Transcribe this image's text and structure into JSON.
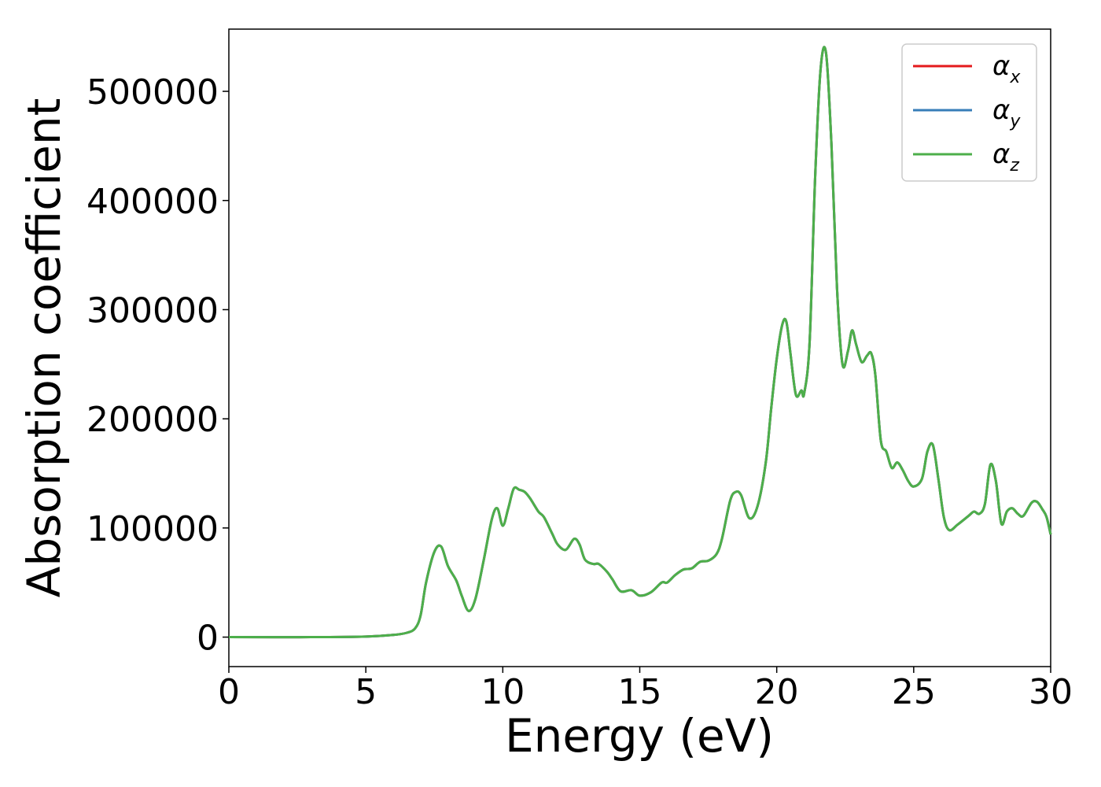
{
  "chart_data": {
    "type": "line",
    "title": "",
    "xlabel": "Energy (eV)",
    "ylabel": "Absorption coefficient",
    "xlim": [
      0,
      30
    ],
    "ylim": [
      -27000,
      557000
    ],
    "xticks": [
      0,
      5,
      10,
      15,
      20,
      25,
      30
    ],
    "xtick_labels": [
      "0",
      "5",
      "10",
      "15",
      "20",
      "25",
      "30"
    ],
    "yticks": [
      0,
      100000,
      200000,
      300000,
      400000,
      500000
    ],
    "ytick_labels": [
      "0",
      "100000",
      "200000",
      "300000",
      "400000",
      "500000"
    ],
    "grid": false,
    "legend_position": "top-right",
    "x": [
      0,
      3,
      5,
      6,
      6.5,
      6.8,
      7.0,
      7.2,
      7.5,
      7.75,
      8.0,
      8.3,
      8.5,
      8.75,
      9.0,
      9.3,
      9.6,
      9.8,
      10.0,
      10.2,
      10.4,
      10.6,
      10.8,
      11.0,
      11.3,
      11.5,
      11.8,
      12.0,
      12.3,
      12.6,
      12.8,
      13.0,
      13.3,
      13.5,
      13.8,
      14.0,
      14.3,
      14.7,
      15.0,
      15.4,
      15.8,
      16.0,
      16.3,
      16.6,
      16.9,
      17.2,
      17.5,
      17.8,
      18.0,
      18.3,
      18.5,
      18.7,
      19.0,
      19.3,
      19.6,
      19.8,
      20.0,
      20.2,
      20.35,
      20.5,
      20.7,
      20.9,
      21.0,
      21.2,
      21.4,
      21.6,
      21.8,
      22.0,
      22.2,
      22.4,
      22.6,
      22.75,
      22.9,
      23.1,
      23.3,
      23.45,
      23.6,
      23.8,
      24.0,
      24.2,
      24.4,
      24.6,
      24.8,
      25.0,
      25.3,
      25.5,
      25.7,
      25.9,
      26.1,
      26.3,
      26.6,
      27.0,
      27.2,
      27.4,
      27.6,
      27.8,
      28.0,
      28.2,
      28.4,
      28.6,
      28.8,
      29.0,
      29.3,
      29.5,
      29.7,
      29.85,
      30.0
    ],
    "series": [
      {
        "name": "αx",
        "color": "#e41a1c",
        "values": [
          0,
          0,
          500,
          2000,
          4000,
          8000,
          20000,
          50000,
          78000,
          83000,
          65000,
          52000,
          38000,
          24000,
          35000,
          70000,
          108000,
          118000,
          102000,
          118000,
          136000,
          135000,
          133000,
          127000,
          115000,
          110000,
          95000,
          85000,
          80000,
          90000,
          85000,
          71000,
          67000,
          67000,
          60000,
          53000,
          42000,
          43000,
          38000,
          41000,
          50000,
          50000,
          57000,
          62000,
          63000,
          69000,
          70000,
          76000,
          90000,
          125000,
          133000,
          130000,
          109000,
          120000,
          160000,
          210000,
          255000,
          286000,
          289000,
          260000,
          222000,
          226000,
          223000,
          270000,
          420000,
          520000,
          535000,
          450000,
          320000,
          250000,
          262000,
          281000,
          268000,
          252000,
          258000,
          260000,
          240000,
          180000,
          170000,
          155000,
          160000,
          153000,
          143000,
          138000,
          145000,
          170000,
          176000,
          145000,
          110000,
          98000,
          103000,
          111000,
          115000,
          113000,
          122000,
          158000,
          143000,
          104000,
          115000,
          118000,
          113000,
          111000,
          123000,
          124000,
          117000,
          110000,
          94000
        ]
      },
      {
        "name": "αy",
        "color": "#377eb8",
        "values": [
          0,
          0,
          500,
          2000,
          4000,
          8000,
          20000,
          50000,
          78000,
          83000,
          65000,
          52000,
          38000,
          24000,
          35000,
          70000,
          108000,
          118000,
          102000,
          118000,
          136000,
          135000,
          133000,
          127000,
          115000,
          110000,
          95000,
          85000,
          80000,
          90000,
          85000,
          71000,
          67000,
          67000,
          60000,
          53000,
          42000,
          43000,
          38000,
          41000,
          50000,
          50000,
          57000,
          62000,
          63000,
          69000,
          70000,
          76000,
          90000,
          125000,
          133000,
          130000,
          109000,
          120000,
          160000,
          210000,
          255000,
          286000,
          289000,
          260000,
          222000,
          226000,
          223000,
          270000,
          420000,
          520000,
          535000,
          450000,
          320000,
          250000,
          262000,
          281000,
          268000,
          252000,
          258000,
          260000,
          240000,
          180000,
          170000,
          155000,
          160000,
          153000,
          143000,
          138000,
          145000,
          170000,
          176000,
          145000,
          110000,
          98000,
          103000,
          111000,
          115000,
          113000,
          122000,
          158000,
          143000,
          104000,
          115000,
          118000,
          113000,
          111000,
          123000,
          124000,
          117000,
          110000,
          94000
        ]
      },
      {
        "name": "αz",
        "color": "#4daf4a",
        "values": [
          0,
          0,
          500,
          2000,
          4000,
          8000,
          20000,
          50000,
          78000,
          83000,
          65000,
          52000,
          38000,
          24000,
          35000,
          70000,
          108000,
          118000,
          102000,
          118000,
          136000,
          135000,
          133000,
          127000,
          115000,
          110000,
          95000,
          85000,
          80000,
          90000,
          85000,
          71000,
          67000,
          67000,
          60000,
          53000,
          42000,
          43000,
          38000,
          41000,
          50000,
          50000,
          57000,
          62000,
          63000,
          69000,
          70000,
          76000,
          90000,
          125000,
          133000,
          130000,
          109000,
          120000,
          160000,
          210000,
          255000,
          286000,
          289000,
          260000,
          222000,
          226000,
          223000,
          270000,
          420000,
          520000,
          535000,
          450000,
          320000,
          250000,
          262000,
          281000,
          268000,
          252000,
          258000,
          260000,
          240000,
          180000,
          170000,
          155000,
          160000,
          153000,
          143000,
          138000,
          145000,
          170000,
          176000,
          145000,
          110000,
          98000,
          103000,
          111000,
          115000,
          113000,
          122000,
          158000,
          143000,
          104000,
          115000,
          118000,
          113000,
          111000,
          123000,
          124000,
          117000,
          110000,
          94000
        ]
      }
    ],
    "legend": [
      {
        "symbol": "α",
        "sub": "x",
        "color": "#e41a1c"
      },
      {
        "symbol": "α",
        "sub": "y",
        "color": "#377eb8"
      },
      {
        "symbol": "α",
        "sub": "z",
        "color": "#4daf4a"
      }
    ]
  }
}
